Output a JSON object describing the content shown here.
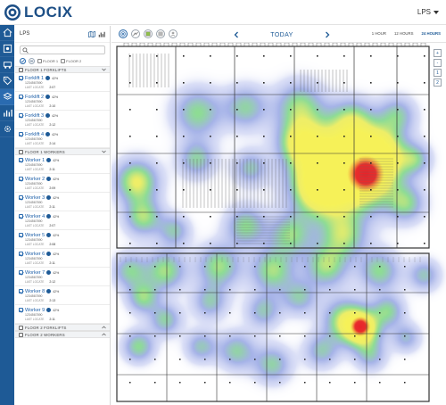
{
  "header": {
    "brand": "LOCIX",
    "user_menu": "LPS"
  },
  "nav": {
    "items": [
      "home-icon",
      "location-icon",
      "vehicle-icon",
      "tag-icon",
      "layers-icon",
      "analytics-icon",
      "settings-icon"
    ],
    "active_index": 4
  },
  "panel": {
    "title": "LPS",
    "search_placeholder": "",
    "floor1_label": "FLOOR 1",
    "floor2_label": "FLOOR 2",
    "groups": [
      {
        "title": "FLOOR 1 FORKLIFTS",
        "expanded": true,
        "items": [
          {
            "name": "Forklift 1",
            "battery": "42%",
            "id": "1234567890",
            "last_label": "LAST LOCATE",
            "last_value": "2:07"
          },
          {
            "name": "Forklift 2",
            "battery": "42%",
            "id": "1234567890",
            "last_label": "LAST LOCATE",
            "last_value": "2:10"
          },
          {
            "name": "Forklift 3",
            "battery": "42%",
            "id": "1234567890",
            "last_label": "LAST LOCATE",
            "last_value": "2:12"
          },
          {
            "name": "Forklift 4",
            "battery": "42%",
            "id": "1234567890",
            "last_label": "LAST LOCATE",
            "last_value": "2:14"
          }
        ]
      },
      {
        "title": "FLOOR 1 WORKERS",
        "expanded": true,
        "items": [
          {
            "name": "Worker 1",
            "battery": "42%",
            "id": "1234567890",
            "last_label": "LAST LOCATE",
            "last_value": "2:11"
          },
          {
            "name": "Worker 2",
            "battery": "42%",
            "id": "1234567890",
            "last_label": "LAST LOCATE",
            "last_value": "2:09"
          },
          {
            "name": "Worker 3",
            "battery": "42%",
            "id": "1234567890",
            "last_label": "LAST LOCATE",
            "last_value": "2:11"
          },
          {
            "name": "Worker 4",
            "battery": "42%",
            "id": "1234567890",
            "last_label": "LAST LOCATE",
            "last_value": "2:07"
          },
          {
            "name": "Worker 5",
            "battery": "42%",
            "id": "1234567890",
            "last_label": "LAST LOCATE",
            "last_value": "2:08"
          },
          {
            "name": "Worker 6",
            "battery": "42%",
            "id": "1234567890",
            "last_label": "LAST LOCATE",
            "last_value": "2:11"
          },
          {
            "name": "Worker 7",
            "battery": "42%",
            "id": "1234567890",
            "last_label": "LAST LOCATE",
            "last_value": "2:12"
          },
          {
            "name": "Worker 8",
            "battery": "42%",
            "id": "1234567890",
            "last_label": "LAST LOCATE",
            "last_value": "2:13"
          },
          {
            "name": "Worker 9",
            "battery": "42%",
            "id": "1234567890",
            "last_label": "LAST LOCATE",
            "last_value": "2:11"
          }
        ]
      },
      {
        "title": "FLOOR 2 FORKLIFTS",
        "expanded": false,
        "items": []
      },
      {
        "title": "FLOOR 2 WORKERS",
        "expanded": false,
        "items": []
      }
    ]
  },
  "toolbar": {
    "view_icons": [
      "heatmap-icon",
      "path-icon",
      "zone-icon",
      "grid-icon",
      "person-icon"
    ],
    "date_label": "TODAY",
    "ranges": [
      "1 HOUR",
      "12 HOURS",
      "24 HOURS"
    ],
    "selected_range": "24 HOURS"
  },
  "map": {
    "controls": [
      "+",
      "-",
      "1",
      "2"
    ],
    "heat_colors": {
      "low": "#6f86d6",
      "mid": "#61d36a",
      "high": "#f2e94a",
      "peak": "#e8232a"
    }
  }
}
